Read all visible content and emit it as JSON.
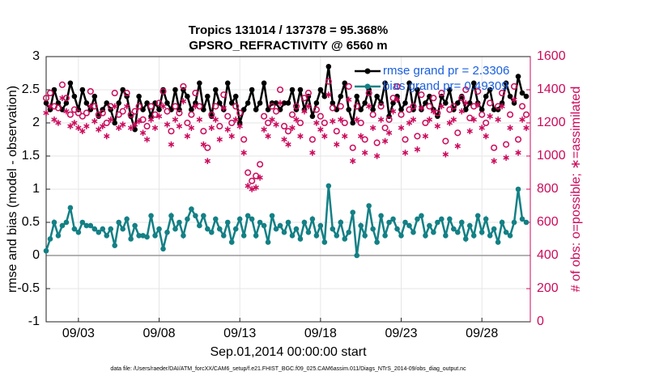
{
  "chart_data": {
    "type": "line",
    "title": "Tropics 131014 / 137378 = 95.368%",
    "subtitle": "GPSRO_REFRACTIVITY @ 6560 m",
    "xlabel": "Sep.01,2014 00:00:00 start",
    "ylabel": "rmse and bias (model - observation)",
    "y2label": "# of obs: o=possible; ∗=assimilated",
    "footnote": "data file: /Users/raeder/DAI/ATM_forcXX/CAM6_setup/f.e21.FHIST_BGC.f09_025.CAM6assim.011/Diags_NTrS_2014-09/obs_diag_output.nc",
    "x": [
      0,
      0.25,
      0.5,
      0.75,
      1,
      1.25,
      1.5,
      1.75,
      2,
      2.25,
      2.5,
      2.75,
      3,
      3.25,
      3.5,
      3.75,
      4,
      4.25,
      4.5,
      4.75,
      5,
      5.25,
      5.5,
      5.75,
      6,
      6.25,
      6.5,
      6.75,
      7,
      7.25,
      7.5,
      7.75,
      8,
      8.25,
      8.5,
      8.75,
      9,
      9.25,
      9.5,
      9.75,
      10,
      10.25,
      10.5,
      10.75,
      11,
      11.25,
      11.5,
      11.75,
      12,
      12.25,
      12.5,
      12.75,
      13,
      13.25,
      13.5,
      13.75,
      14,
      14.25,
      14.5,
      14.75,
      15,
      15.25,
      15.5,
      15.75,
      16,
      16.25,
      16.5,
      16.75,
      17,
      17.25,
      17.5,
      17.75,
      18,
      18.25,
      18.5,
      18.75,
      19,
      19.25,
      19.5,
      19.75,
      20,
      20.25,
      20.5,
      20.75,
      21,
      21.25,
      21.5,
      21.75,
      22,
      22.25,
      22.5,
      22.75,
      23,
      23.25,
      23.5,
      23.75,
      24,
      24.25,
      24.5,
      24.75,
      25,
      25.25,
      25.5,
      25.75,
      26,
      26.25,
      26.5,
      26.75,
      27,
      27.25,
      27.5,
      27.75,
      28,
      28.25,
      28.5,
      28.75,
      29,
      29.25,
      29.5,
      29.75
    ],
    "xlim": [
      0,
      30
    ],
    "xticks": [
      {
        "value": 2,
        "label": "09/03"
      },
      {
        "value": 7,
        "label": "09/08"
      },
      {
        "value": 12,
        "label": "09/13"
      },
      {
        "value": 17,
        "label": "09/18"
      },
      {
        "value": 22,
        "label": "09/23"
      },
      {
        "value": 27,
        "label": "09/28"
      }
    ],
    "ylim": [
      -1,
      3
    ],
    "yticks": [
      -1,
      -0.5,
      0,
      0.5,
      1,
      1.5,
      2,
      2.5,
      3
    ],
    "y2lim": [
      0,
      1600
    ],
    "y2ticks": [
      0,
      200,
      400,
      600,
      800,
      1000,
      1200,
      1400,
      1600
    ],
    "grid": true,
    "legend": "upper right",
    "legend_text_color": "#1a5fe0",
    "series": [
      {
        "name": "rmse grand pr = 2.3306",
        "color": "#000000",
        "marker": "dot",
        "values": [
          2.3,
          2.2,
          2.5,
          2.3,
          2.2,
          2.3,
          2.6,
          2.4,
          2.2,
          2.5,
          2.3,
          2.2,
          2.4,
          2.1,
          2.2,
          2.3,
          2.2,
          2.0,
          2.3,
          2.5,
          2.4,
          2.1,
          1.9,
          2.4,
          2.2,
          2.3,
          2.1,
          2.3,
          2.2,
          2.5,
          2.3,
          2.2,
          2.5,
          2.2,
          2.5,
          2.4,
          2.2,
          2.3,
          2.6,
          2.2,
          2.4,
          2.1,
          2.5,
          2.3,
          2.2,
          2.6,
          2.3,
          2.4,
          2.0,
          2.2,
          2.3,
          2.5,
          2.2,
          2.3,
          2.6,
          2.2,
          2.3,
          2.3,
          2.2,
          2.3,
          2.3,
          2.5,
          2.2,
          2.5,
          2.2,
          2.4,
          2.1,
          2.3,
          2.5,
          2.4,
          2.85,
          2.3,
          2.2,
          2.4,
          2.6,
          2.2,
          2.0,
          2.4,
          2.2,
          2.3,
          2.5,
          2.2,
          2.4,
          2.3,
          2.6,
          2.1,
          2.3,
          2.4,
          2.2,
          2.3,
          2.6,
          2.2,
          2.5,
          2.2,
          2.3,
          2.4,
          2.2,
          2.1,
          2.4,
          2.3,
          2.5,
          2.2,
          2.3,
          2.4,
          2.2,
          2.3,
          2.6,
          2.3,
          2.2,
          2.4,
          2.5,
          2.2,
          2.2,
          2.3,
          2.6,
          2.4,
          2.3,
          2.7,
          2.45,
          2.4
        ]
      },
      {
        "name": "bias grand pr= 0.49309",
        "color": "#138085",
        "marker": "dot",
        "values": [
          0.07,
          0.25,
          0.5,
          0.3,
          0.45,
          0.5,
          0.72,
          0.4,
          0.35,
          0.5,
          0.45,
          0.45,
          0.4,
          0.35,
          0.4,
          0.3,
          0.4,
          0.15,
          0.5,
          0.4,
          0.55,
          0.25,
          0.45,
          0.3,
          0.3,
          0.28,
          0.6,
          0.3,
          0.4,
          0.1,
          0.35,
          0.6,
          0.4,
          0.5,
          0.3,
          0.55,
          0.7,
          0.6,
          0.45,
          0.6,
          0.4,
          0.35,
          0.55,
          0.4,
          0.3,
          0.5,
          0.2,
          0.4,
          0.55,
          0.3,
          0.6,
          0.55,
          0.3,
          0.5,
          0.45,
          0.2,
          0.6,
          0.4,
          0.45,
          0.35,
          0.5,
          0.3,
          0.4,
          0.25,
          0.5,
          0.35,
          0.55,
          0.3,
          0.45,
          0.2,
          1.05,
          0.4,
          0.3,
          0.5,
          0.25,
          0.35,
          0.65,
          0.0,
          0.45,
          0.3,
          0.75,
          0.4,
          0.2,
          0.6,
          0.3,
          0.5,
          0.55,
          0.4,
          0.3,
          0.5,
          0.45,
          0.35,
          0.55,
          0.6,
          0.3,
          0.45,
          0.35,
          0.5,
          0.55,
          0.3,
          0.55,
          0.4,
          0.35,
          0.5,
          0.25,
          0.45,
          0.3,
          0.6,
          0.35,
          0.55,
          0.3,
          0.4,
          0.2,
          0.5,
          0.35,
          0.3,
          0.5,
          1.0,
          0.55,
          0.5
        ]
      },
      {
        "color": "#cc0a5c",
        "marker": "circle",
        "axis": "y2",
        "values": [
          1350,
          1380,
          1300,
          1290,
          1430,
          1350,
          1250,
          1280,
          1260,
          1240,
          1260,
          1390,
          1300,
          1250,
          1260,
          1200,
          1300,
          1380,
          1250,
          1270,
          1380,
          1250,
          1270,
          1300,
          1220,
          1180,
          1300,
          1250,
          1320,
          1390,
          1270,
          1150,
          1300,
          1260,
          1420,
          1200,
          1250,
          1380,
          1300,
          1150,
          1050,
          1250,
          1300,
          1180,
          1370,
          1240,
          1200,
          1300,
          1260,
          1100,
          900,
          850,
          880,
          950,
          1240,
          1200,
          1300,
          1270,
          1400,
          1180,
          1150,
          1250,
          1300,
          1200,
          1350,
          1380,
          1100,
          1280,
          1240,
          1200,
          1450,
          1290,
          1150,
          1300,
          1200,
          1420,
          1050,
          1300,
          1200,
          1100,
          1380,
          1250,
          1080,
          1300,
          1170,
          1220,
          1350,
          1420,
          1250,
          1100,
          1280,
          1300,
          1120,
          1370,
          1200,
          1300,
          1350,
          1260,
          1380,
          1090,
          1280,
          1300,
          1140,
          1350,
          1400,
          1230,
          1300,
          1390,
          1250,
          1200,
          1320,
          1050,
          1300,
          1380,
          1070,
          1250,
          1420,
          1100,
          1300,
          1250
        ]
      },
      {
        "color": "#cc0a5c",
        "marker": "asterisk",
        "axis": "y2",
        "values": [
          1260,
          1300,
          1220,
          1200,
          1350,
          1270,
          1180,
          1200,
          1170,
          1150,
          1180,
          1300,
          1210,
          1160,
          1180,
          1120,
          1220,
          1300,
          1170,
          1190,
          1300,
          1170,
          1190,
          1210,
          1140,
          1100,
          1220,
          1170,
          1240,
          1300,
          1190,
          1070,
          1220,
          1180,
          1330,
          1120,
          1170,
          1300,
          1220,
          1070,
          970,
          1170,
          1220,
          1100,
          1290,
          1160,
          1120,
          1220,
          1180,
          1020,
          820,
          800,
          810,
          870,
          1160,
          1120,
          1220,
          1190,
          1320,
          1100,
          1070,
          1170,
          1220,
          1120,
          1270,
          1300,
          1020,
          1200,
          1160,
          1120,
          1370,
          1210,
          1070,
          1220,
          1120,
          1340,
          970,
          1220,
          1120,
          1020,
          1300,
          1170,
          1000,
          1220,
          1090,
          1140,
          1270,
          1340,
          1170,
          1020,
          1200,
          1220,
          1040,
          1290,
          1120,
          1220,
          1270,
          1180,
          1300,
          1010,
          1200,
          1220,
          1060,
          1270,
          1320,
          1150,
          1220,
          1310,
          1170,
          1120,
          1240,
          970,
          1220,
          1300,
          990,
          1170,
          1340,
          1020,
          1220,
          1170
        ]
      }
    ]
  }
}
